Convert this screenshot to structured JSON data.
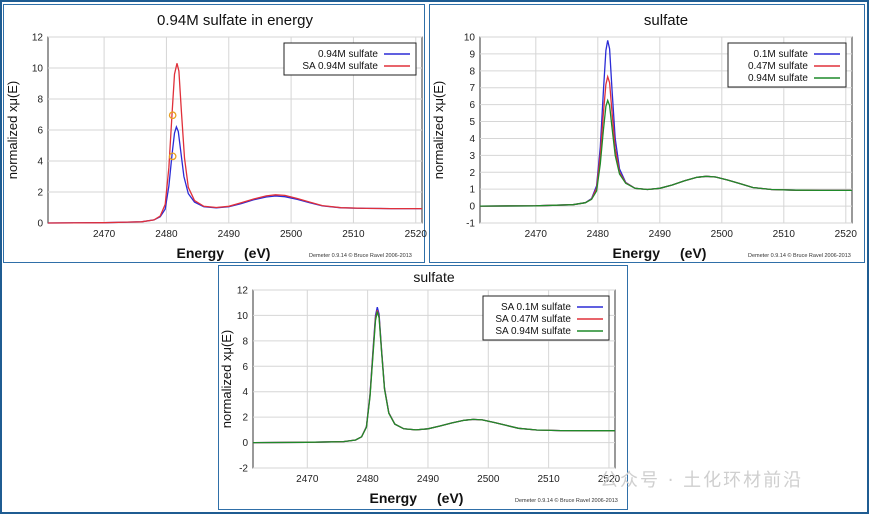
{
  "watermark": "公众号 · 土化环材前沿",
  "credit": "Demeter 0.9.14 © Bruce Ravel 2006-2013",
  "chart_data": [
    {
      "type": "line",
      "title": "0.94M sulfate in energy",
      "xlabel": "Energy",
      "xunit": "(eV)",
      "ylabel": "normalized xμ(E)",
      "xlim": [
        2461,
        2521
      ],
      "ylim": [
        0,
        12
      ],
      "xticks": [
        2470,
        2480,
        2490,
        2500,
        2510,
        2520
      ],
      "yticks": [
        0,
        2,
        4,
        6,
        8,
        10,
        12
      ],
      "grid": true,
      "legend_position": "top-right",
      "series": [
        {
          "name": "0.94M sulfate",
          "color": "#2b2bd6",
          "x": [
            2461,
            2470,
            2476,
            2478,
            2479,
            2479.8,
            2480.4,
            2480.9,
            2481.3,
            2481.6,
            2481.9,
            2482.3,
            2482.8,
            2483.5,
            2484.5,
            2486,
            2488,
            2490,
            2492,
            2494,
            2496,
            2497.5,
            2499,
            2501,
            2503,
            2505,
            2508,
            2512,
            2516,
            2521
          ],
          "y": [
            0.0,
            0.02,
            0.08,
            0.2,
            0.4,
            0.9,
            2.4,
            4.4,
            5.8,
            6.2,
            5.9,
            4.6,
            3.0,
            1.9,
            1.35,
            1.05,
            0.98,
            1.05,
            1.25,
            1.5,
            1.68,
            1.74,
            1.7,
            1.52,
            1.3,
            1.1,
            0.98,
            0.94,
            0.93,
            0.93
          ]
        },
        {
          "name": "SA  0.94M sulfate",
          "color": "#e0303a",
          "x": [
            2461,
            2470,
            2476,
            2478,
            2479,
            2479.8,
            2480.4,
            2480.9,
            2481.3,
            2481.7,
            2482.0,
            2482.4,
            2482.9,
            2483.5,
            2484.5,
            2486,
            2488,
            2490,
            2492,
            2494,
            2496,
            2497.5,
            2499,
            2501,
            2503,
            2505,
            2508,
            2512,
            2516,
            2521
          ],
          "y": [
            0.0,
            0.02,
            0.08,
            0.2,
            0.45,
            1.2,
            3.6,
            7.0,
            9.6,
            10.3,
            9.8,
            7.2,
            4.2,
            2.3,
            1.45,
            1.08,
            1.0,
            1.08,
            1.3,
            1.55,
            1.75,
            1.82,
            1.78,
            1.58,
            1.35,
            1.12,
            0.99,
            0.94,
            0.93,
            0.93
          ]
        }
      ],
      "markers": [
        {
          "x": 2481.0,
          "y": 6.95,
          "color": "#e8a020"
        },
        {
          "x": 2481.0,
          "y": 4.3,
          "color": "#e8a020"
        }
      ]
    },
    {
      "type": "line",
      "title": "sulfate",
      "xlabel": "Energy",
      "xunit": "(eV)",
      "ylabel": "normalized xμ(E)",
      "xlim": [
        2461,
        2521
      ],
      "ylim": [
        -1,
        10
      ],
      "xticks": [
        2470,
        2480,
        2490,
        2500,
        2510,
        2520
      ],
      "yticks": [
        -1,
        0,
        1,
        2,
        3,
        4,
        5,
        6,
        7,
        8,
        9,
        10
      ],
      "grid": true,
      "legend_position": "top-right",
      "series": [
        {
          "name": "0.1M sulfate",
          "color": "#2b2bd6",
          "x": [
            2461,
            2470,
            2476,
            2478,
            2479,
            2479.8,
            2480.4,
            2480.9,
            2481.3,
            2481.6,
            2481.9,
            2482.3,
            2482.8,
            2483.5,
            2484.5,
            2486,
            2488,
            2490,
            2492,
            2494,
            2496,
            2497.5,
            2499,
            2501,
            2503,
            2505,
            2508,
            2512,
            2516,
            2521
          ],
          "y": [
            0.0,
            0.02,
            0.08,
            0.2,
            0.45,
            1.2,
            3.5,
            6.8,
            9.2,
            9.8,
            9.3,
            6.8,
            4.0,
            2.2,
            1.4,
            1.05,
            0.98,
            1.05,
            1.25,
            1.5,
            1.7,
            1.76,
            1.72,
            1.54,
            1.32,
            1.1,
            0.98,
            0.94,
            0.93,
            0.93
          ]
        },
        {
          "name": "0.47M sulfate",
          "color": "#e0303a",
          "x": [
            2461,
            2470,
            2476,
            2478,
            2479,
            2479.8,
            2480.4,
            2480.9,
            2481.3,
            2481.6,
            2481.9,
            2482.3,
            2482.8,
            2483.5,
            2484.5,
            2486,
            2488,
            2490,
            2492,
            2494,
            2496,
            2497.5,
            2499,
            2501,
            2503,
            2505,
            2508,
            2512,
            2516,
            2521
          ],
          "y": [
            0.0,
            0.02,
            0.08,
            0.2,
            0.42,
            1.05,
            3.0,
            5.5,
            7.2,
            7.65,
            7.3,
            5.5,
            3.4,
            2.0,
            1.38,
            1.05,
            0.98,
            1.05,
            1.25,
            1.5,
            1.7,
            1.76,
            1.72,
            1.54,
            1.32,
            1.1,
            0.98,
            0.94,
            0.93,
            0.93
          ]
        },
        {
          "name": "0.94M sulfate",
          "color": "#1f8a2a",
          "x": [
            2461,
            2470,
            2476,
            2478,
            2479,
            2479.8,
            2480.4,
            2480.9,
            2481.3,
            2481.6,
            2481.9,
            2482.3,
            2482.8,
            2483.5,
            2484.5,
            2486,
            2488,
            2490,
            2492,
            2494,
            2496,
            2497.5,
            2499,
            2501,
            2503,
            2505,
            2508,
            2512,
            2516,
            2521
          ],
          "y": [
            0.0,
            0.02,
            0.08,
            0.2,
            0.4,
            0.9,
            2.5,
            4.5,
            5.9,
            6.25,
            5.95,
            4.6,
            3.0,
            1.9,
            1.35,
            1.05,
            0.98,
            1.05,
            1.25,
            1.5,
            1.7,
            1.76,
            1.72,
            1.54,
            1.32,
            1.1,
            0.98,
            0.94,
            0.93,
            0.93
          ]
        }
      ]
    },
    {
      "type": "line",
      "title": "sulfate",
      "xlabel": "Energy",
      "xunit": "(eV)",
      "ylabel": "normalized xμ(E)",
      "xlim": [
        2461,
        2521
      ],
      "ylim": [
        -2,
        12
      ],
      "xticks": [
        2470,
        2480,
        2490,
        2500,
        2510,
        2520
      ],
      "yticks": [
        -2,
        0,
        2,
        4,
        6,
        8,
        10,
        12
      ],
      "grid": true,
      "legend_position": "top-right",
      "series": [
        {
          "name": "SA 0.1M sulfate",
          "color": "#2b2bd6",
          "x": [
            2461,
            2470,
            2476,
            2478,
            2479,
            2479.8,
            2480.4,
            2480.9,
            2481.3,
            2481.6,
            2481.9,
            2482.3,
            2482.8,
            2483.5,
            2484.5,
            2486,
            2488,
            2490,
            2492,
            2494,
            2496,
            2497.5,
            2499,
            2501,
            2503,
            2505,
            2508,
            2512,
            2516,
            2521
          ],
          "y": [
            0.0,
            0.02,
            0.08,
            0.2,
            0.45,
            1.25,
            3.8,
            7.4,
            10.0,
            10.65,
            10.1,
            7.4,
            4.3,
            2.35,
            1.45,
            1.08,
            1.0,
            1.08,
            1.3,
            1.55,
            1.75,
            1.82,
            1.78,
            1.58,
            1.35,
            1.12,
            0.99,
            0.94,
            0.93,
            0.93
          ]
        },
        {
          "name": "SA 0.47M sulfate",
          "color": "#e0303a",
          "x": [
            2461,
            2470,
            2476,
            2478,
            2479,
            2479.8,
            2480.4,
            2480.9,
            2481.3,
            2481.6,
            2481.9,
            2482.3,
            2482.8,
            2483.5,
            2484.5,
            2486,
            2488,
            2490,
            2492,
            2494,
            2496,
            2497.5,
            2499,
            2501,
            2503,
            2505,
            2508,
            2512,
            2516,
            2521
          ],
          "y": [
            0.0,
            0.02,
            0.08,
            0.2,
            0.45,
            1.22,
            3.7,
            7.2,
            9.8,
            10.4,
            9.9,
            7.3,
            4.25,
            2.33,
            1.45,
            1.08,
            1.0,
            1.08,
            1.3,
            1.55,
            1.75,
            1.82,
            1.78,
            1.58,
            1.35,
            1.12,
            0.99,
            0.94,
            0.93,
            0.93
          ]
        },
        {
          "name": "SA 0.94M sulfate",
          "color": "#1f8a2a",
          "x": [
            2461,
            2470,
            2476,
            2478,
            2479,
            2479.8,
            2480.4,
            2480.9,
            2481.3,
            2481.6,
            2481.9,
            2482.3,
            2482.8,
            2483.5,
            2484.5,
            2486,
            2488,
            2490,
            2492,
            2494,
            2496,
            2497.5,
            2499,
            2501,
            2503,
            2505,
            2508,
            2512,
            2516,
            2521
          ],
          "y": [
            0.0,
            0.02,
            0.08,
            0.2,
            0.45,
            1.2,
            3.6,
            7.0,
            9.6,
            10.3,
            9.8,
            7.2,
            4.2,
            2.3,
            1.45,
            1.08,
            1.0,
            1.08,
            1.3,
            1.55,
            1.75,
            1.82,
            1.78,
            1.58,
            1.35,
            1.12,
            0.99,
            0.94,
            0.93,
            0.93
          ]
        }
      ]
    }
  ]
}
